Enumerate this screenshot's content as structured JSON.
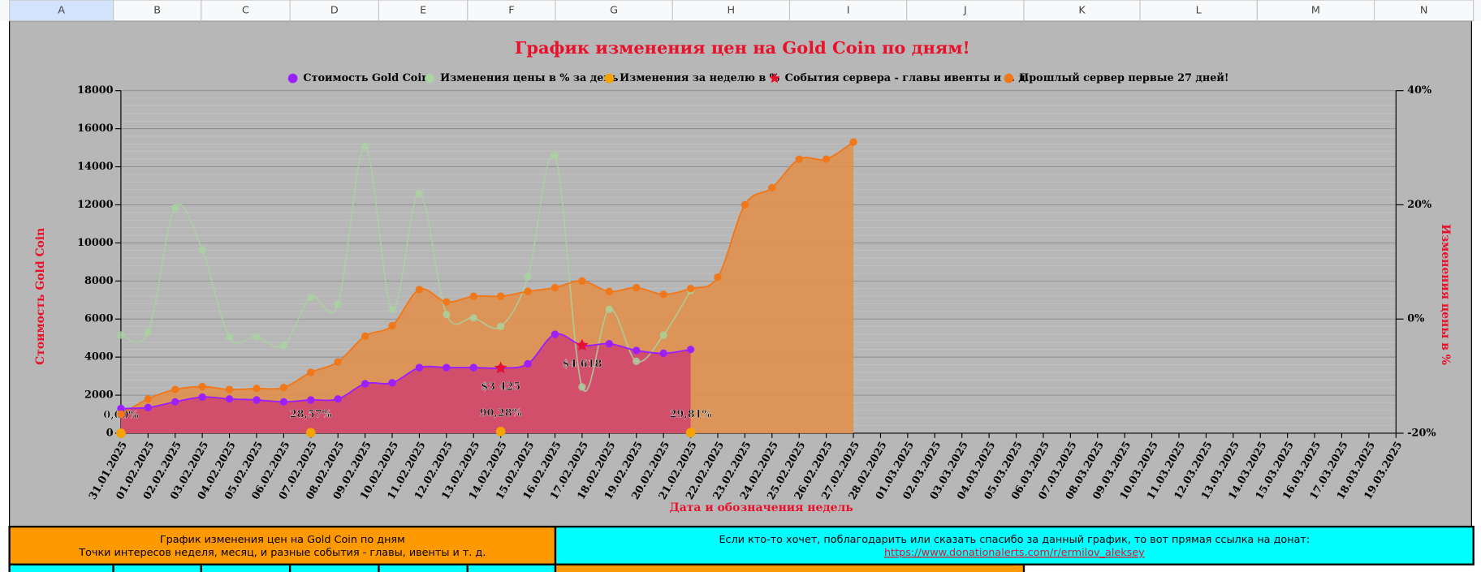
{
  "sheet": {
    "columns": [
      "A",
      "B",
      "C",
      "D",
      "E",
      "F",
      "G",
      "H",
      "I",
      "J",
      "K",
      "L",
      "M",
      "N"
    ],
    "note_left": [
      "График изменения цен на Gold Coin по дням",
      "Точки интересов неделя, месяц, и разные события - главы, ивенты и т. д."
    ],
    "note_right": "Если кто-то хочет, поблагодарить или сказать спасибо за данный график, то вот прямая ссылка на донат:",
    "link": "https://www.donationalerts.com/r/ermilov_aleksey"
  },
  "chart_data": {
    "type": "line",
    "title": "График изменения цен на Gold Coin по дням!",
    "x_label": "Дата и обозначения недель",
    "y_label": "Стоимость Gold Coin",
    "y2_label": "Изменения цены в %",
    "categories": [
      "31.01.2025",
      "01.02.2025",
      "02.02.2025",
      "03.02.2025",
      "04.02.2025",
      "05.02.2025",
      "06.02.2025",
      "07.02.2025",
      "08.02.2025",
      "09.02.2025",
      "10.02.2025",
      "11.02.2025",
      "12.02.2025",
      "13.02.2025",
      "14.02.2025",
      "15.02.2025",
      "16.02.2025",
      "17.02.2025",
      "18.02.2025",
      "19.02.2025",
      "20.02.2025",
      "21.02.2025",
      "22.02.2025",
      "23.02.2025",
      "24.02.2025",
      "25.02.2025",
      "26.02.2025",
      "27.02.2025",
      "28.02.2025",
      "01.03.2025",
      "02.03.2025",
      "03.03.2025",
      "04.03.2025",
      "05.03.2025",
      "06.03.2025",
      "07.03.2025",
      "08.03.2025",
      "09.03.2025",
      "10.03.2025",
      "11.03.2025",
      "12.03.2025",
      "13.03.2025",
      "14.03.2025",
      "15.03.2025",
      "16.03.2025",
      "17.03.2025",
      "18.03.2025",
      "19.03.2025"
    ],
    "ylim": [
      0,
      18000
    ],
    "yticks": [
      0,
      2000,
      4000,
      6000,
      8000,
      10000,
      12000,
      14000,
      16000,
      18000
    ],
    "y2lim": [
      -20,
      40
    ],
    "y2ticks": [
      {
        "value": -20,
        "label": "-20%"
      },
      {
        "value": 0,
        "label": "0%"
      },
      {
        "value": 20,
        "label": "20%"
      },
      {
        "value": 40,
        "label": "40%"
      }
    ],
    "grid": true,
    "series": [
      {
        "name": "Стоимость Gold Coin",
        "color": "#9b1fff",
        "area_color": "#d0476e",
        "marker": "circle",
        "values": [
          1300,
          1350,
          1650,
          1900,
          1800,
          1750,
          1650,
          1750,
          1800,
          2600,
          2650,
          3450,
          3450,
          3450,
          3425,
          3650,
          5200,
          4618,
          4700,
          4350,
          4200,
          4400,
          null,
          null,
          null,
          null,
          null,
          null,
          null,
          null,
          null,
          null,
          null,
          null,
          null,
          null,
          null,
          null,
          null,
          null,
          null,
          null,
          null,
          null,
          null,
          null,
          null,
          null
        ]
      },
      {
        "name": "Изменения цены в % за день",
        "color": "#a9d3a0",
        "marker": "circle",
        "axis": "y2",
        "values": [
          -2.8,
          -2.3,
          19.5,
          12.1,
          -3.1,
          -3.1,
          -4.6,
          3.8,
          2.6,
          30.2,
          1.7,
          22.0,
          0.8,
          0.2,
          -1.3,
          7.4,
          28.6,
          -11.9,
          1.7,
          -7.4,
          -2.8,
          5.0,
          null,
          null,
          null,
          null,
          null,
          null,
          null,
          null,
          null,
          null,
          null,
          null,
          null,
          null,
          null,
          null,
          null,
          null,
          null,
          null,
          null,
          null,
          null,
          null,
          null,
          null
        ]
      },
      {
        "name": "Изменения за неделю в %",
        "color": "#f4a300",
        "marker": "point",
        "values": [
          0,
          null,
          null,
          null,
          null,
          null,
          null,
          28.57,
          null,
          null,
          null,
          null,
          null,
          null,
          90.28,
          null,
          null,
          null,
          null,
          null,
          null,
          29.81,
          null,
          null,
          null,
          null,
          null,
          null,
          null,
          null,
          null,
          null,
          null,
          null,
          null,
          null,
          null,
          null,
          null,
          null,
          null,
          null,
          null,
          null,
          null,
          null,
          null,
          null
        ],
        "value_labels": [
          "0,00%",
          null,
          null,
          null,
          null,
          null,
          null,
          "28,57%",
          null,
          null,
          null,
          null,
          null,
          null,
          "90,28%",
          null,
          null,
          null,
          null,
          null,
          null,
          "29,81%",
          null,
          null,
          null,
          null,
          null,
          null,
          null,
          null,
          null,
          null,
          null,
          null,
          null,
          null,
          null,
          null,
          null,
          null,
          null,
          null,
          null,
          null,
          null,
          null,
          null,
          null
        ]
      },
      {
        "name": "События сервера - главы ивенты и т. д.",
        "color": "#e8102a",
        "marker": "star",
        "values": [
          null,
          null,
          null,
          null,
          null,
          null,
          null,
          null,
          null,
          null,
          null,
          null,
          null,
          null,
          3425,
          null,
          null,
          4618,
          null,
          null,
          null,
          null,
          null,
          null,
          null,
          null,
          null,
          null,
          null,
          null,
          null,
          null,
          null,
          null,
          null,
          null,
          null,
          null,
          null,
          null,
          null,
          null,
          null,
          null,
          null,
          null,
          null,
          null
        ],
        "value_labels": [
          null,
          null,
          null,
          null,
          null,
          null,
          null,
          null,
          null,
          null,
          null,
          null,
          null,
          null,
          "$3 425",
          null,
          null,
          "$4 618",
          null,
          null,
          null,
          null,
          null,
          null,
          null,
          null,
          null,
          null,
          null,
          null,
          null,
          null,
          null,
          null,
          null,
          null,
          null,
          null,
          null,
          null,
          null,
          null,
          null,
          null,
          null,
          null,
          null,
          null
        ]
      },
      {
        "name": "Прошлый сервер первые 27 дней!",
        "color": "#f0781a",
        "area_color": "#e0904e",
        "marker": "circle",
        "values": [
          1000,
          1800,
          2300,
          2450,
          2300,
          2350,
          2400,
          3200,
          3750,
          5100,
          5650,
          7550,
          6900,
          7200,
          7200,
          7450,
          7650,
          8000,
          7450,
          7650,
          7300,
          7600,
          8200,
          12000,
          12900,
          14400,
          14400,
          15300,
          null,
          null,
          null,
          null,
          null,
          null,
          null,
          null,
          null,
          null,
          null,
          null,
          null,
          null,
          null,
          null,
          null,
          null,
          null,
          null
        ]
      }
    ]
  }
}
